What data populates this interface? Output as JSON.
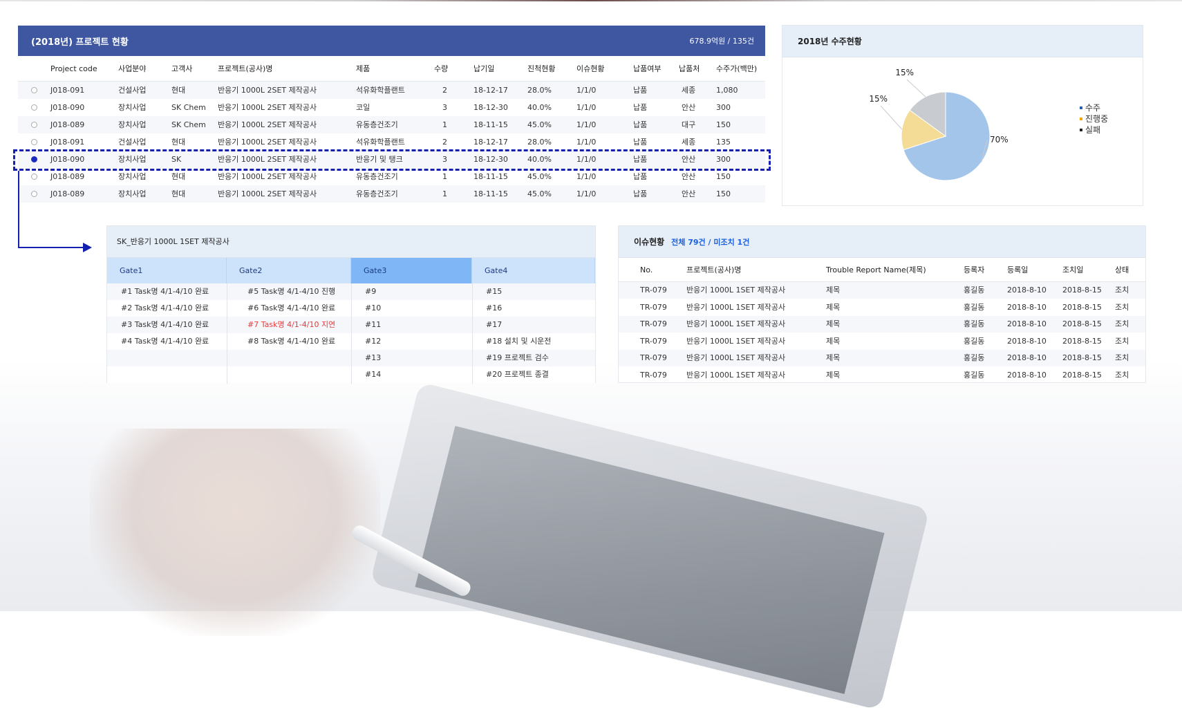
{
  "project_table": {
    "title": "(2018년) 프로젝트 현황",
    "summary": "678.9억원 / 135건",
    "columns": [
      "Project code",
      "사업분야",
      "고객사",
      "프로젝트(공사)명",
      "제품",
      "수량",
      "납기일",
      "진척현황",
      "이슈현황",
      "납품여부",
      "납품처",
      "수주가(백만)"
    ],
    "rows": [
      {
        "selected": false,
        "cells": [
          "J018-091",
          "건설사업",
          "현대",
          "반응기 1000L 2SET 제작공사",
          "석유화학플랜트",
          "2",
          "18-12-17",
          "28.0%",
          "1/1/0",
          "납품",
          "세종",
          "1,080"
        ]
      },
      {
        "selected": false,
        "cells": [
          "J018-090",
          "장치사업",
          "SK Chem",
          "반응기 1000L 2SET 제작공사",
          "코일",
          "3",
          "18-12-30",
          "40.0%",
          "1/1/0",
          "납품",
          "안산",
          "300"
        ]
      },
      {
        "selected": false,
        "cells": [
          "J018-089",
          "장치사업",
          "SK Chem",
          "반응기 1000L 2SET 제작공사",
          "유동층건조기",
          "1",
          "18-11-15",
          "45.0%",
          "1/1/0",
          "납품",
          "대구",
          "150"
        ]
      },
      {
        "selected": false,
        "cells": [
          "J018-091",
          "건설사업",
          "현대",
          "반응기 1000L 2SET 제작공사",
          "석유화학플랜트",
          "2",
          "18-12-17",
          "28.0%",
          "1/1/0",
          "납품",
          "세종",
          "135"
        ]
      },
      {
        "selected": true,
        "cells": [
          "J018-090",
          "장치사업",
          "SK",
          "반응기 1000L 2SET 제작공사",
          "반응기 및 탱크",
          "3",
          "18-12-30",
          "40.0%",
          "1/1/0",
          "납품",
          "안산",
          "300"
        ]
      },
      {
        "selected": false,
        "cells": [
          "J018-089",
          "장치사업",
          "현대",
          "반응기 1000L 2SET 제작공사",
          "유동층건조기",
          "1",
          "18-11-15",
          "45.0%",
          "1/1/0",
          "납품",
          "안산",
          "150"
        ]
      },
      {
        "selected": false,
        "cells": [
          "J018-089",
          "장치사업",
          "현대",
          "반응기 1000L 2SET 제작공사",
          "유동층건조기",
          "1",
          "18-11-15",
          "45.0%",
          "1/1/0",
          "납품",
          "안산",
          "150"
        ]
      }
    ]
  },
  "chart_data": {
    "type": "pie",
    "title": "2018년 수주현황",
    "categories": [
      "수주",
      "진행중",
      "실패"
    ],
    "values": [
      70,
      15,
      15
    ],
    "labels": [
      "70%",
      "15%",
      "15%"
    ],
    "colors": [
      "#a3c5ea",
      "#f5dc96",
      "#c8ccd0"
    ],
    "legend_colors": [
      "#2a5fb0",
      "#f5a800",
      "#222222"
    ],
    "legend": "right"
  },
  "gate_panel": {
    "title": "SK_반응기 1000L 1SET 제작공사",
    "active_gate": 2,
    "gates": [
      {
        "label": "Gate1",
        "items": [
          "#1 Task명 4/1-4/10 완료",
          "#2 Task명 4/1-4/10 완료",
          "#3 Task명 4/1-4/10 완료",
          "#4 Task명 4/1-4/10 완료"
        ]
      },
      {
        "label": "Gate2",
        "items": [
          "#5 Task명 4/1-4/10 진행",
          "#6 Task명 4/1-4/10 완료",
          "#7 Task명 4/1-4/10 지연",
          "#8 Task명 4/1-4/10 완료"
        ],
        "delayed_index": 2
      },
      {
        "label": "Gate3",
        "items": [
          "#9",
          "#10",
          "#11",
          "#12",
          "#13",
          "#14"
        ]
      },
      {
        "label": "Gate4",
        "items": [
          "#15",
          "#16",
          "#17",
          "#18  설치 및 시운전",
          "#19  프로젝트 검수",
          "#20  프로젝트 종결"
        ]
      }
    ],
    "delay_color": "#e83a3a"
  },
  "issue_panel": {
    "title": "이슈현황",
    "subtitle": "전체 79건 /  미조치 1건",
    "columns": [
      "No.",
      "프로젝트(공사)명",
      "Trouble Report Name(제목)",
      "등록자",
      "등록일",
      "조치일",
      "상태"
    ],
    "rows": [
      [
        "TR-079",
        "반응기 1000L 1SET 제작공사",
        "제목",
        "홍길동",
        "2018-8-10",
        "2018-8-15",
        "조치"
      ],
      [
        "TR-079",
        "반응기 1000L 1SET 제작공사",
        "제목",
        "홍길동",
        "2018-8-10",
        "2018-8-15",
        "조치"
      ],
      [
        "TR-079",
        "반응기 1000L 1SET 제작공사",
        "제목",
        "홍길동",
        "2018-8-10",
        "2018-8-15",
        "조치"
      ],
      [
        "TR-079",
        "반응기 1000L 1SET 제작공사",
        "제목",
        "홍길동",
        "2018-8-10",
        "2018-8-15",
        "조치"
      ],
      [
        "TR-079",
        "반응기 1000L 1SET 제작공사",
        "제목",
        "홍길동",
        "2018-8-10",
        "2018-8-15",
        "조치"
      ],
      [
        "TR-079",
        "반응기 1000L 1SET 제작공사",
        "제목",
        "홍길동",
        "2018-8-10",
        "2018-8-15",
        "조치"
      ]
    ]
  }
}
